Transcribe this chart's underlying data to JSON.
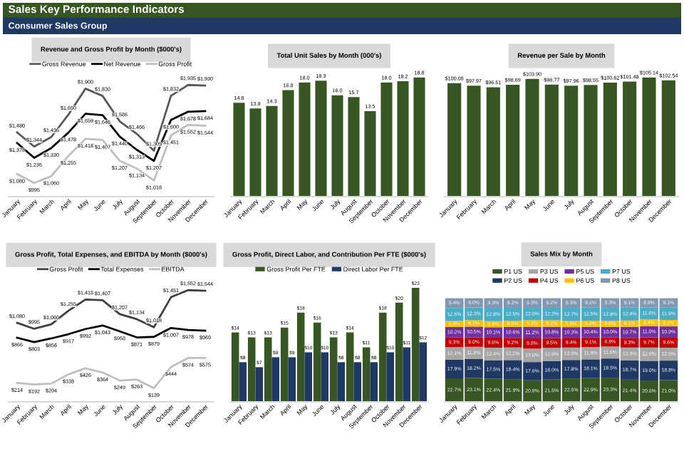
{
  "chart_data": [
    {
      "type": "other",
      "title": "Sales Key Performance Indicators",
      "subtitle": "Consumer Sales Group"
    },
    {
      "type": "line",
      "title": "Revenue and Gross Profit by Month ($000's)",
      "legend": "top",
      "categories": [
        "January",
        "February",
        "March",
        "April",
        "May",
        "June",
        "July",
        "August",
        "September",
        "October",
        "November",
        "December"
      ],
      "series": [
        {
          "name": "Gross Revenue",
          "color": "#595959",
          "values": [
            1480,
            1344,
            1436,
            1650,
            1900,
            1830,
            1586,
            1466,
            1305,
            1832,
            1935,
            1930
          ],
          "value_labels": [
            "$1,480",
            "$1,344",
            "$1,436",
            "$1,650",
            "$1,900",
            "$1,830",
            "$1,586",
            "$1,466",
            "$1,305",
            "$1,832",
            "$1,935",
            "$1,930"
          ]
        },
        {
          "name": "Net Revenue",
          "color": "#000000",
          "values": [
            1378,
            1236,
            1330,
            1478,
            1659,
            1646,
            1440,
            1313,
            1207,
            1600,
            1678,
            1684
          ],
          "value_labels": [
            "$1,378",
            "$1,236",
            "$1,330",
            "$1,478",
            "$1,659",
            "$1,646",
            "$1,440",
            "$1,313",
            "$1,207",
            "$1,600",
            "$1,678",
            "$1,684"
          ]
        },
        {
          "name": "Gross Profit",
          "color": "#bfbfbf",
          "values": [
            1080,
            995,
            1060,
            1255,
            1418,
            1407,
            1207,
            1134,
            1018,
            1451,
            1552,
            1544
          ],
          "value_labels": [
            "$1,080",
            "$995",
            "$1,060",
            "$1,255",
            "$1,418",
            "$1,407",
            "$1,207",
            "$1,134",
            "$1,018",
            "$1,451",
            "$1,552",
            "$1,544"
          ]
        }
      ]
    },
    {
      "type": "bar",
      "title": "Total Unit Sales by Month (000's)",
      "categories": [
        "January",
        "February",
        "March",
        "April",
        "May",
        "June",
        "July",
        "August",
        "September",
        "October",
        "November",
        "December"
      ],
      "series": [
        {
          "color": "#375623",
          "values": [
            14.8,
            13.9,
            14.3,
            16.8,
            18.0,
            18.3,
            16.0,
            15.7,
            13.5,
            18.0,
            18.2,
            18.8
          ],
          "value_labels": [
            "14.8",
            "13.9",
            "14.3",
            "16.8",
            "18.0",
            "18.3",
            "16.0",
            "15.7",
            "13.5",
            "18.0",
            "18.2",
            "18.8"
          ]
        }
      ]
    },
    {
      "type": "bar",
      "title": "Revenue per Sale by Month",
      "categories": [
        "January",
        "February",
        "March",
        "April",
        "May",
        "June",
        "July",
        "August",
        "September",
        "October",
        "November",
        "December"
      ],
      "series": [
        {
          "color": "#375623",
          "values": [
            100.08,
            97.97,
            96.51,
            98.69,
            103.9,
            98.77,
            97.96,
            98.55,
            100.62,
            101.48,
            105.14,
            102.54
          ],
          "value_labels": [
            "$100.08",
            "$97.97",
            "$96.51",
            "$98.69",
            "$103.90",
            "$98.77",
            "$97.96",
            "$98.55",
            "$100.62",
            "$101.48",
            "$105.14",
            "$102.54"
          ]
        }
      ]
    },
    {
      "type": "line",
      "title": "Gross Profit, Total Expenses, and EBITDA by Month ($000's)",
      "legend": "top",
      "categories": [
        "January",
        "February",
        "March",
        "April",
        "May",
        "June",
        "July",
        "August",
        "September",
        "October",
        "November",
        "December"
      ],
      "series": [
        {
          "name": "Gross Profit",
          "color": "#404040",
          "values": [
            1080,
            995,
            1060,
            1255,
            1418,
            1407,
            1207,
            1134,
            1018,
            1451,
            1552,
            1544
          ],
          "value_labels": [
            "$1,080",
            "$995",
            "$1,060",
            "$1,255",
            "$1,418",
            "$1,407",
            "$1,207",
            "$1,134",
            "$1,018",
            "$1,451",
            "$1,552",
            "$1,544"
          ]
        },
        {
          "name": "Total Expenses",
          "color": "#000000",
          "values": [
            866,
            803,
            856,
            917,
            992,
            1043,
            958,
            871,
            879,
            1007,
            978,
            969
          ],
          "value_labels": [
            "$866",
            "$803",
            "$856",
            "$917",
            "$992",
            "$1,043",
            "$958",
            "$871",
            "$879",
            "$1,007",
            "$978",
            "$969"
          ]
        },
        {
          "name": "EBITDA",
          "color": "#bfbfbf",
          "values": [
            214,
            192,
            204,
            338,
            426,
            364,
            249,
            263,
            139,
            444,
            574,
            575
          ],
          "value_labels": [
            "$214",
            "$192",
            "$204",
            "$338",
            "$426",
            "$364",
            "$249",
            "$263",
            "$139",
            "$444",
            "$574",
            "$575"
          ]
        }
      ]
    },
    {
      "type": "bar",
      "title": "Gross Profit, Direct Labor, and Contribution Per FTE ($000's)",
      "legend": "top",
      "categories": [
        "January",
        "February",
        "March",
        "April",
        "May",
        "June",
        "July",
        "August",
        "September",
        "October",
        "November",
        "December"
      ],
      "series": [
        {
          "name": "Gross Profit Per FTE",
          "color": "#375623",
          "values": [
            14,
            13,
            13,
            15,
            18,
            16,
            13,
            14,
            11,
            18,
            20,
            23
          ],
          "value_labels": [
            "$14",
            "$13",
            "$13",
            "$15",
            "$18",
            "$16",
            "$13",
            "$14",
            "$11",
            "$18",
            "$20",
            "$23"
          ]
        },
        {
          "name": "Direct Labor Per FTE",
          "color": "#1f3864",
          "values": [
            8,
            7,
            9,
            9,
            10,
            10,
            8,
            8,
            8,
            10,
            11,
            12
          ],
          "value_labels": [
            "$8",
            "$7",
            "$9",
            "$9",
            "$10",
            "$10",
            "$8",
            "$8",
            "$8",
            "$10",
            "$11",
            "$12"
          ]
        }
      ]
    },
    {
      "type": "bar",
      "title": "Sales Mix by Month",
      "stacked": true,
      "legend": "top",
      "categories": [
        "January",
        "February",
        "March",
        "April",
        "May",
        "June",
        "July",
        "August",
        "September",
        "October",
        "November",
        "December"
      ],
      "series": [
        {
          "name": "P1 US",
          "color": "#375623",
          "values": [
            22.7,
            23.1,
            22.4,
            21.9,
            20.8,
            21.5,
            22.6,
            22.9,
            23.3,
            21.4,
            20.6,
            21.0
          ],
          "value_labels": [
            "22.7%",
            "23.1%",
            "22.4%",
            "21.9%",
            "20.8%",
            "21.5%",
            "22.6%",
            "22.9%",
            "23.3%",
            "21.4%",
            "20.6%",
            "21.0%"
          ]
        },
        {
          "name": "P2 US",
          "color": "#1f3864",
          "values": [
            17.9,
            18.2,
            17.5,
            18.4,
            17.6,
            18.0,
            17.8,
            18.1,
            18.5,
            18.7,
            19.0,
            18.8
          ],
          "value_labels": [
            "17.9%",
            "18.2%",
            "17.5%",
            "18.4%",
            "17.6%",
            "18.0%",
            "17.8%",
            "18.1%",
            "18.5%",
            "18.7%",
            "19.0%",
            "18.8%"
          ]
        },
        {
          "name": "P3 US",
          "color": "#a6a6a6",
          "values": [
            12.1,
            11.8,
            12.4,
            12.2,
            13.0,
            12.6,
            12.0,
            11.9,
            11.6,
            12.3,
            12.8,
            12.5
          ],
          "value_labels": [
            "12.1%",
            "11.8%",
            "12.4%",
            "12.2%",
            "13.0%",
            "12.6%",
            "12.0%",
            "11.9%",
            "11.6%",
            "12.3%",
            "12.8%",
            "12.5%"
          ]
        },
        {
          "name": "P4 US",
          "color": "#c00000",
          "values": [
            9.3,
            9.0,
            9.6,
            9.2,
            9.8,
            9.5,
            9.4,
            9.1,
            8.9,
            9.3,
            9.7,
            9.6
          ],
          "value_labels": [
            "9.3%",
            "9.0%",
            "9.6%",
            "9.2%",
            "9.8%",
            "9.5%",
            "9.4%",
            "9.1%",
            "8.9%",
            "9.3%",
            "9.7%",
            "9.6%"
          ]
        },
        {
          "name": "P5 US",
          "color": "#7030a0",
          "values": [
            10.2,
            10.5,
            10.1,
            10.6,
            11.2,
            10.8,
            10.3,
            10.4,
            10.0,
            10.7,
            11.0,
            10.9
          ],
          "value_labels": [
            "10.2%",
            "10.5%",
            "10.1%",
            "10.6%",
            "11.2%",
            "10.8%",
            "10.3%",
            "10.4%",
            "10.0%",
            "10.7%",
            "11.0%",
            "10.9%"
          ]
        },
        {
          "name": "P6 US",
          "color": "#ffc000",
          "values": [
            5.8,
            6.1,
            5.9,
            6.0,
            6.3,
            6.2,
            5.9,
            6.0,
            5.8,
            6.1,
            6.4,
            6.2
          ],
          "value_labels": [
            "5.8%",
            "6.1%",
            "5.9%",
            "6.0%",
            "6.3%",
            "6.2%",
            "5.9%",
            "6.0%",
            "5.8%",
            "6.1%",
            "6.4%",
            "6.2%"
          ]
        },
        {
          "name": "P7 US",
          "color": "#4bacc6",
          "values": [
            12.6,
            12.3,
            12.8,
            12.5,
            12.0,
            12.2,
            12.7,
            12.5,
            12.6,
            12.4,
            11.6,
            11.9
          ],
          "value_labels": [
            "12.6%",
            "12.3%",
            "12.8%",
            "12.5%",
            "12.0%",
            "12.2%",
            "12.7%",
            "12.5%",
            "12.6%",
            "12.4%",
            "11.6%",
            "11.9%"
          ]
        },
        {
          "name": "P8 US",
          "color": "#8497b0",
          "values": [
            9.4,
            9.0,
            9.3,
            9.2,
            9.3,
            9.2,
            9.3,
            9.1,
            9.3,
            9.1,
            8.9,
            9.1
          ],
          "value_labels": [
            "9.4%",
            "9.0%",
            "9.3%",
            "9.2%",
            "9.3%",
            "9.2%",
            "9.3%",
            "9.1%",
            "9.3%",
            "9.1%",
            "8.9%",
            "9.1%"
          ]
        }
      ]
    }
  ]
}
